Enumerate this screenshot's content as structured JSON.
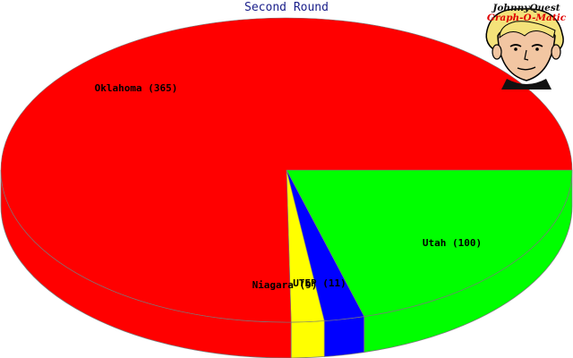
{
  "chart_data": {
    "type": "pie",
    "title": "Second Round",
    "style": "3d",
    "slices": [
      {
        "label": "Oklahoma",
        "value": 365,
        "color": "#ff0000"
      },
      {
        "label": "Utah",
        "value": 100,
        "color": "#00ff00"
      },
      {
        "label": "UTEP",
        "value": 11,
        "color": "#0000ff"
      },
      {
        "label": "Niagara",
        "value": 9,
        "color": "#ffff00"
      }
    ]
  },
  "logo": {
    "line1": "JohnnyQuest",
    "line2": "Graph-O-Matic"
  }
}
